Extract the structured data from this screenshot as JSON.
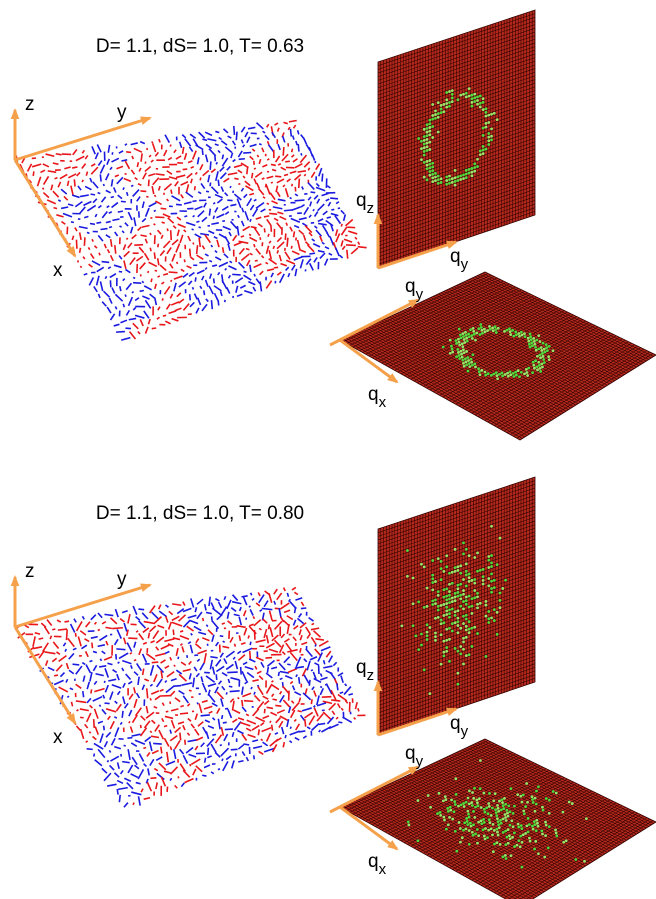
{
  "panels": [
    {
      "title": "D= 1.1, dS= 1.0, T= 0.63",
      "real_space_axes": [
        "z",
        "y",
        "x"
      ],
      "vertical_plane_axes": [
        {
          "base": "q",
          "sub": "z"
        },
        {
          "base": "q",
          "sub": "y"
        }
      ],
      "horizontal_plane_axes": [
        {
          "base": "q",
          "sub": "y"
        },
        {
          "base": "q",
          "sub": "x"
        }
      ]
    },
    {
      "title": "D= 1.1, dS= 1.0, T= 0.80",
      "real_space_axes": [
        "z",
        "y",
        "x"
      ],
      "vertical_plane_axes": [
        {
          "base": "q",
          "sub": "z"
        },
        {
          "base": "q",
          "sub": "y"
        }
      ],
      "horizontal_plane_axes": [
        {
          "base": "q",
          "sub": "y"
        },
        {
          "base": "q",
          "sub": "x"
        }
      ]
    }
  ]
}
